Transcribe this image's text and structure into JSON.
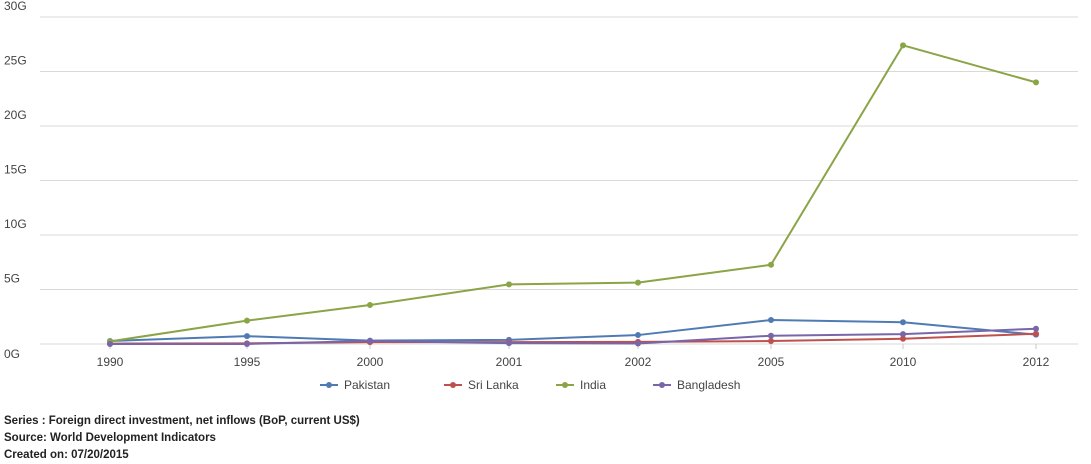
{
  "chart_data": {
    "type": "line",
    "categories": [
      "1990",
      "1995",
      "2000",
      "2001",
      "2002",
      "2005",
      "2010",
      "2012"
    ],
    "y_ticks": [
      "0G",
      "5G",
      "10G",
      "15G",
      "20G",
      "25G",
      "30G"
    ],
    "ylim": [
      0,
      30
    ],
    "grid": true,
    "legend_position": "bottom",
    "series": [
      {
        "name": "Pakistan",
        "color": "#4f7bb5",
        "values": [
          0.28,
          0.72,
          0.31,
          0.38,
          0.82,
          2.2,
          2.0,
          0.86
        ]
      },
      {
        "name": "Sri Lanka",
        "color": "#c0504d",
        "values": [
          0.04,
          0.06,
          0.17,
          0.17,
          0.2,
          0.27,
          0.48,
          0.94
        ]
      },
      {
        "name": "India",
        "color": "#8aa446",
        "values": [
          0.24,
          2.14,
          3.58,
          5.47,
          5.63,
          7.27,
          27.4,
          24.0
        ]
      },
      {
        "name": "Bangladesh",
        "color": "#7866a8",
        "values": [
          0.003,
          0.002,
          0.28,
          0.08,
          0.05,
          0.76,
          0.91,
          1.4
        ]
      }
    ]
  },
  "footer": {
    "series_line": "Series : Foreign direct investment, net inflows (BoP, current US$)",
    "source_line": "Source: World Development Indicators",
    "created_line": "Created on: 07/20/2015"
  }
}
